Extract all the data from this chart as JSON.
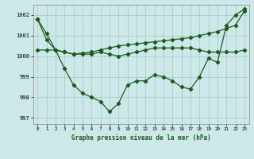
{
  "background_color": "#cde8e8",
  "grid_color": "#aacccc",
  "line_color": "#1a5c1a",
  "title": "Graphe pression niveau de la mer (hPa)",
  "xlim": [
    -0.5,
    23.5
  ],
  "ylim": [
    996.7,
    1002.5
  ],
  "yticks": [
    997,
    998,
    999,
    1000,
    1001,
    1002
  ],
  "xtick_labels": [
    "0",
    "1",
    "2",
    "3",
    "4",
    "5",
    "6",
    "7",
    "8",
    "9",
    "10",
    "11",
    "12",
    "13",
    "14",
    "15",
    "16",
    "17",
    "18",
    "19",
    "20",
    "21",
    "22",
    "23"
  ],
  "series": [
    {
      "x": [
        0,
        1,
        2,
        3,
        4,
        5,
        6,
        7,
        8,
        9,
        10,
        11,
        12,
        13,
        14,
        15,
        16,
        17,
        18,
        19,
        20,
        21,
        22,
        23
      ],
      "y": [
        1001.8,
        1001.1,
        1000.3,
        999.4,
        998.6,
        998.2,
        998.0,
        997.8,
        997.3,
        997.7,
        998.6,
        998.8,
        998.8,
        999.1,
        999.0,
        998.8,
        998.5,
        998.4,
        999.0,
        999.9,
        999.7,
        1001.5,
        1002.0,
        1002.3
      ]
    },
    {
      "x": [
        0,
        1,
        2,
        3,
        4,
        5,
        6,
        7,
        8,
        9,
        10,
        11,
        12,
        13,
        14,
        15,
        16,
        17,
        18,
        19,
        20,
        21,
        22,
        23
      ],
      "y": [
        1000.3,
        1000.3,
        1000.3,
        1000.2,
        1000.1,
        1000.1,
        1000.1,
        1000.2,
        1000.1,
        1000.0,
        1000.1,
        1000.2,
        1000.3,
        1000.4,
        1000.4,
        1000.4,
        1000.4,
        1000.4,
        1000.3,
        1000.2,
        1000.2,
        1000.2,
        1000.2,
        1000.3
      ]
    },
    {
      "x": [
        0,
        1,
        2,
        3,
        4,
        5,
        6,
        7,
        8,
        9,
        10,
        11,
        12,
        13,
        14,
        15,
        16,
        17,
        18,
        19,
        20,
        21,
        22,
        23
      ],
      "y": [
        1001.8,
        1000.8,
        1000.3,
        1000.2,
        1000.1,
        1000.15,
        1000.2,
        1000.3,
        1000.4,
        1000.5,
        1000.55,
        1000.6,
        1000.65,
        1000.7,
        1000.75,
        1000.8,
        1000.85,
        1000.9,
        1001.0,
        1001.1,
        1001.2,
        1001.35,
        1001.5,
        1002.2
      ]
    }
  ]
}
